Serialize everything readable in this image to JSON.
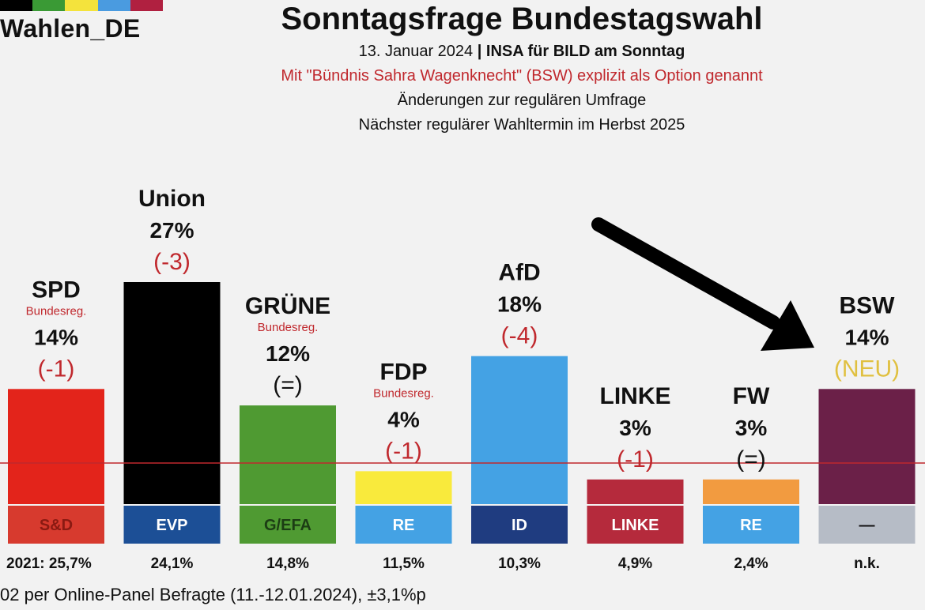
{
  "logo": {
    "text": "Wahlen_DE",
    "colors": [
      "#000000",
      "#3a9a35",
      "#f4e33c",
      "#4a9be0",
      "#b02040"
    ]
  },
  "header": {
    "title": "Sonntagsfrage Bundestagswahl",
    "date": "13. Januar 2024",
    "separator": "|",
    "institute": "INSA für BILD am Sonntag",
    "bsw_note": "Mit \"Bündnis Sahra Wagenknecht\" (BSW) explizit als Option genannt",
    "changes_note": "Änderungen zur regulären Umfrage",
    "next_election": "Nächster regulärer Wahltermin im Herbst 2025"
  },
  "footer": {
    "text": "02 per Online-Panel Befragte (11.-12.01.2024), ±3,1%p"
  },
  "chart_data": {
    "type": "bar",
    "unit": "%",
    "ylim": [
      0,
      27
    ],
    "reference_line": 5,
    "categories": [
      "SPD",
      "Union",
      "GRÜNE",
      "FDP",
      "AfD",
      "LINKE",
      "FW",
      "BSW"
    ],
    "values": [
      14,
      27,
      12,
      4,
      18,
      3,
      3,
      14
    ],
    "value_labels": [
      "14%",
      "27%",
      "12%",
      "4%",
      "18%",
      "3%",
      "3%",
      "14%"
    ],
    "change_labels": [
      "(-1)",
      "(-3)",
      "(=)",
      "(-1)",
      "(-4)",
      "(-1)",
      "(=)",
      "(NEU)"
    ],
    "change_colors": [
      "#c0282d",
      "#c0282d",
      "#111111",
      "#c0282d",
      "#c0282d",
      "#c0282d",
      "#111111",
      "#e0c040"
    ],
    "government_label": "Bundesreg.",
    "government": [
      true,
      false,
      true,
      true,
      false,
      false,
      false,
      false
    ],
    "colors": [
      "#e3241b",
      "#000000",
      "#4f9a32",
      "#f9ea3c",
      "#44a2e4",
      "#b52a3c",
      "#f29b40",
      "#6b2048"
    ],
    "eu_groups": [
      "S&D",
      "EVP",
      "G/EFA",
      "RE",
      "ID",
      "LINKE",
      "RE",
      "—"
    ],
    "eu_colors": [
      "#d73a2e",
      "#1c4f96",
      "#4f9a32",
      "#44a2e4",
      "#1f3c80",
      "#b52a3c",
      "#44a2e4",
      "#b6bcc6"
    ],
    "eu_text_colors": [
      "#8a1a12",
      "#ffffff",
      "#1c3d14",
      "#ffffff",
      "#ffffff",
      "#ffffff",
      "#ffffff",
      "#111111"
    ],
    "result_2021": [
      "2021: 25,7%",
      "24,1%",
      "14,8%",
      "11,5%",
      "10,3%",
      "4,9%",
      "2,4%",
      "n.k."
    ]
  }
}
